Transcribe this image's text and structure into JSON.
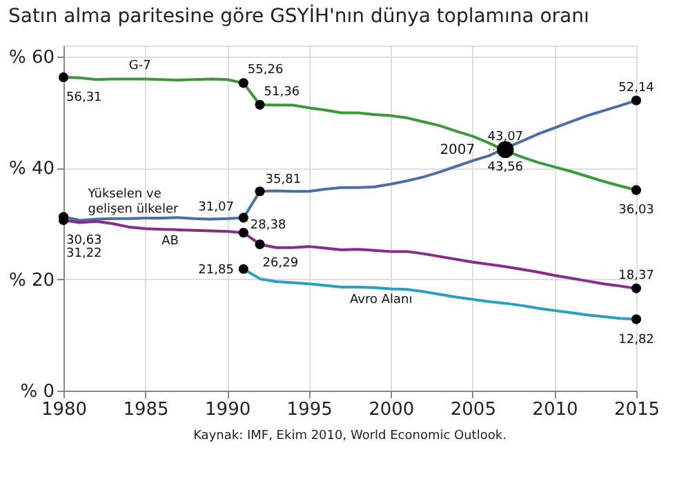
{
  "chart_data": {
    "type": "line",
    "title": "Satın alma paritesine göre GSYİH'nın dünya toplamına oranı",
    "x": [
      1980,
      1981,
      1982,
      1983,
      1984,
      1985,
      1986,
      1987,
      1988,
      1989,
      1990,
      1991,
      1992,
      1993,
      1994,
      1995,
      1996,
      1997,
      1998,
      1999,
      2000,
      2001,
      2002,
      2003,
      2004,
      2005,
      2006,
      2007,
      2008,
      2009,
      2010,
      2011,
      2012,
      2013,
      2014,
      2015
    ],
    "series": [
      {
        "name": "G-7",
        "color": "#3a9a3a",
        "values": [
          56.31,
          56.2,
          55.9,
          56.0,
          56.0,
          56.0,
          55.9,
          55.8,
          55.9,
          56.0,
          55.9,
          55.26,
          51.36,
          51.3,
          51.3,
          50.8,
          50.4,
          49.9,
          49.9,
          49.6,
          49.4,
          49.0,
          48.3,
          47.6,
          46.6,
          45.7,
          44.5,
          43.07,
          42.0,
          41.0,
          40.2,
          39.4,
          38.5,
          37.6,
          36.8,
          36.03
        ],
        "value_labels": [
          "56,31",
          null,
          null,
          null,
          null,
          null,
          null,
          null,
          null,
          null,
          null,
          "55,26",
          "51,36",
          null,
          null,
          null,
          null,
          null,
          null,
          null,
          null,
          null,
          null,
          null,
          null,
          null,
          null,
          "43,07",
          null,
          null,
          null,
          null,
          null,
          null,
          null,
          "36,03"
        ]
      },
      {
        "name": "Yükselen ve gelişen ülkeler",
        "color": "#4a6fa5",
        "values": [
          31.22,
          30.6,
          30.8,
          30.9,
          30.9,
          31.0,
          31.0,
          31.1,
          30.9,
          30.8,
          30.9,
          31.07,
          35.81,
          35.9,
          35.8,
          35.8,
          36.2,
          36.5,
          36.5,
          36.6,
          37.1,
          37.7,
          38.4,
          39.3,
          40.3,
          41.3,
          42.2,
          43.56,
          44.8,
          46.1,
          47.2,
          48.3,
          49.4,
          50.3,
          51.2,
          52.14
        ],
        "value_labels": [
          "31,22",
          null,
          null,
          null,
          null,
          null,
          null,
          null,
          null,
          null,
          null,
          "31,07",
          "35,81",
          null,
          null,
          null,
          null,
          null,
          null,
          null,
          null,
          null,
          null,
          null,
          null,
          null,
          null,
          "43,56",
          null,
          null,
          null,
          null,
          null,
          null,
          null,
          "52,14"
        ]
      },
      {
        "name": "AB",
        "color": "#8a2a8a",
        "values": [
          30.63,
          30.2,
          30.4,
          30.0,
          29.4,
          29.1,
          29.0,
          28.9,
          28.8,
          28.7,
          28.6,
          28.38,
          26.29,
          25.7,
          25.7,
          25.9,
          25.6,
          25.3,
          25.4,
          25.2,
          25.0,
          25.0,
          24.6,
          24.1,
          23.6,
          23.1,
          22.7,
          22.3,
          21.8,
          21.3,
          20.7,
          20.2,
          19.7,
          19.2,
          18.8,
          18.37
        ],
        "value_labels": [
          "30,63",
          null,
          null,
          null,
          null,
          null,
          null,
          null,
          null,
          null,
          null,
          "28,38",
          "26,29",
          null,
          null,
          null,
          null,
          null,
          null,
          null,
          null,
          null,
          null,
          null,
          null,
          null,
          null,
          null,
          null,
          null,
          null,
          null,
          null,
          null,
          null,
          "18,37"
        ]
      },
      {
        "name": "Avro Alanı",
        "color": "#2aa0c0",
        "x": [
          1991,
          1992,
          1993,
          1994,
          1995,
          1996,
          1997,
          1998,
          1999,
          2000,
          2001,
          2002,
          2003,
          2004,
          2005,
          2006,
          2007,
          2008,
          2009,
          2010,
          2011,
          2012,
          2013,
          2014,
          2015
        ],
        "values": [
          21.85,
          20.1,
          19.6,
          19.4,
          19.2,
          18.9,
          18.6,
          18.6,
          18.5,
          18.3,
          18.2,
          17.8,
          17.3,
          16.8,
          16.4,
          16.0,
          15.7,
          15.3,
          14.8,
          14.4,
          14.0,
          13.6,
          13.3,
          13.0,
          12.82
        ],
        "value_labels": [
          "21,85",
          null,
          null,
          null,
          null,
          null,
          null,
          null,
          null,
          null,
          null,
          null,
          null,
          null,
          null,
          null,
          null,
          null,
          null,
          null,
          null,
          null,
          null,
          null,
          "12,82"
        ]
      }
    ],
    "xlim": [
      1980,
      2015
    ],
    "xticks": [
      1980,
      1985,
      1990,
      1995,
      2000,
      2005,
      2010,
      2015
    ],
    "ylim": [
      0,
      62
    ],
    "yticks": [
      {
        "value": 0,
        "label": "% 0"
      },
      {
        "value": 20,
        "label": "% 20"
      },
      {
        "value": 40,
        "label": "% 40"
      },
      {
        "value": 60,
        "label": "% 60"
      }
    ],
    "grid": true,
    "annotations": [
      {
        "text": "2007",
        "x": 2007,
        "y": 43.3
      },
      "Kaynak: IMF, Ekim 2010, World Economic Outlook."
    ]
  }
}
